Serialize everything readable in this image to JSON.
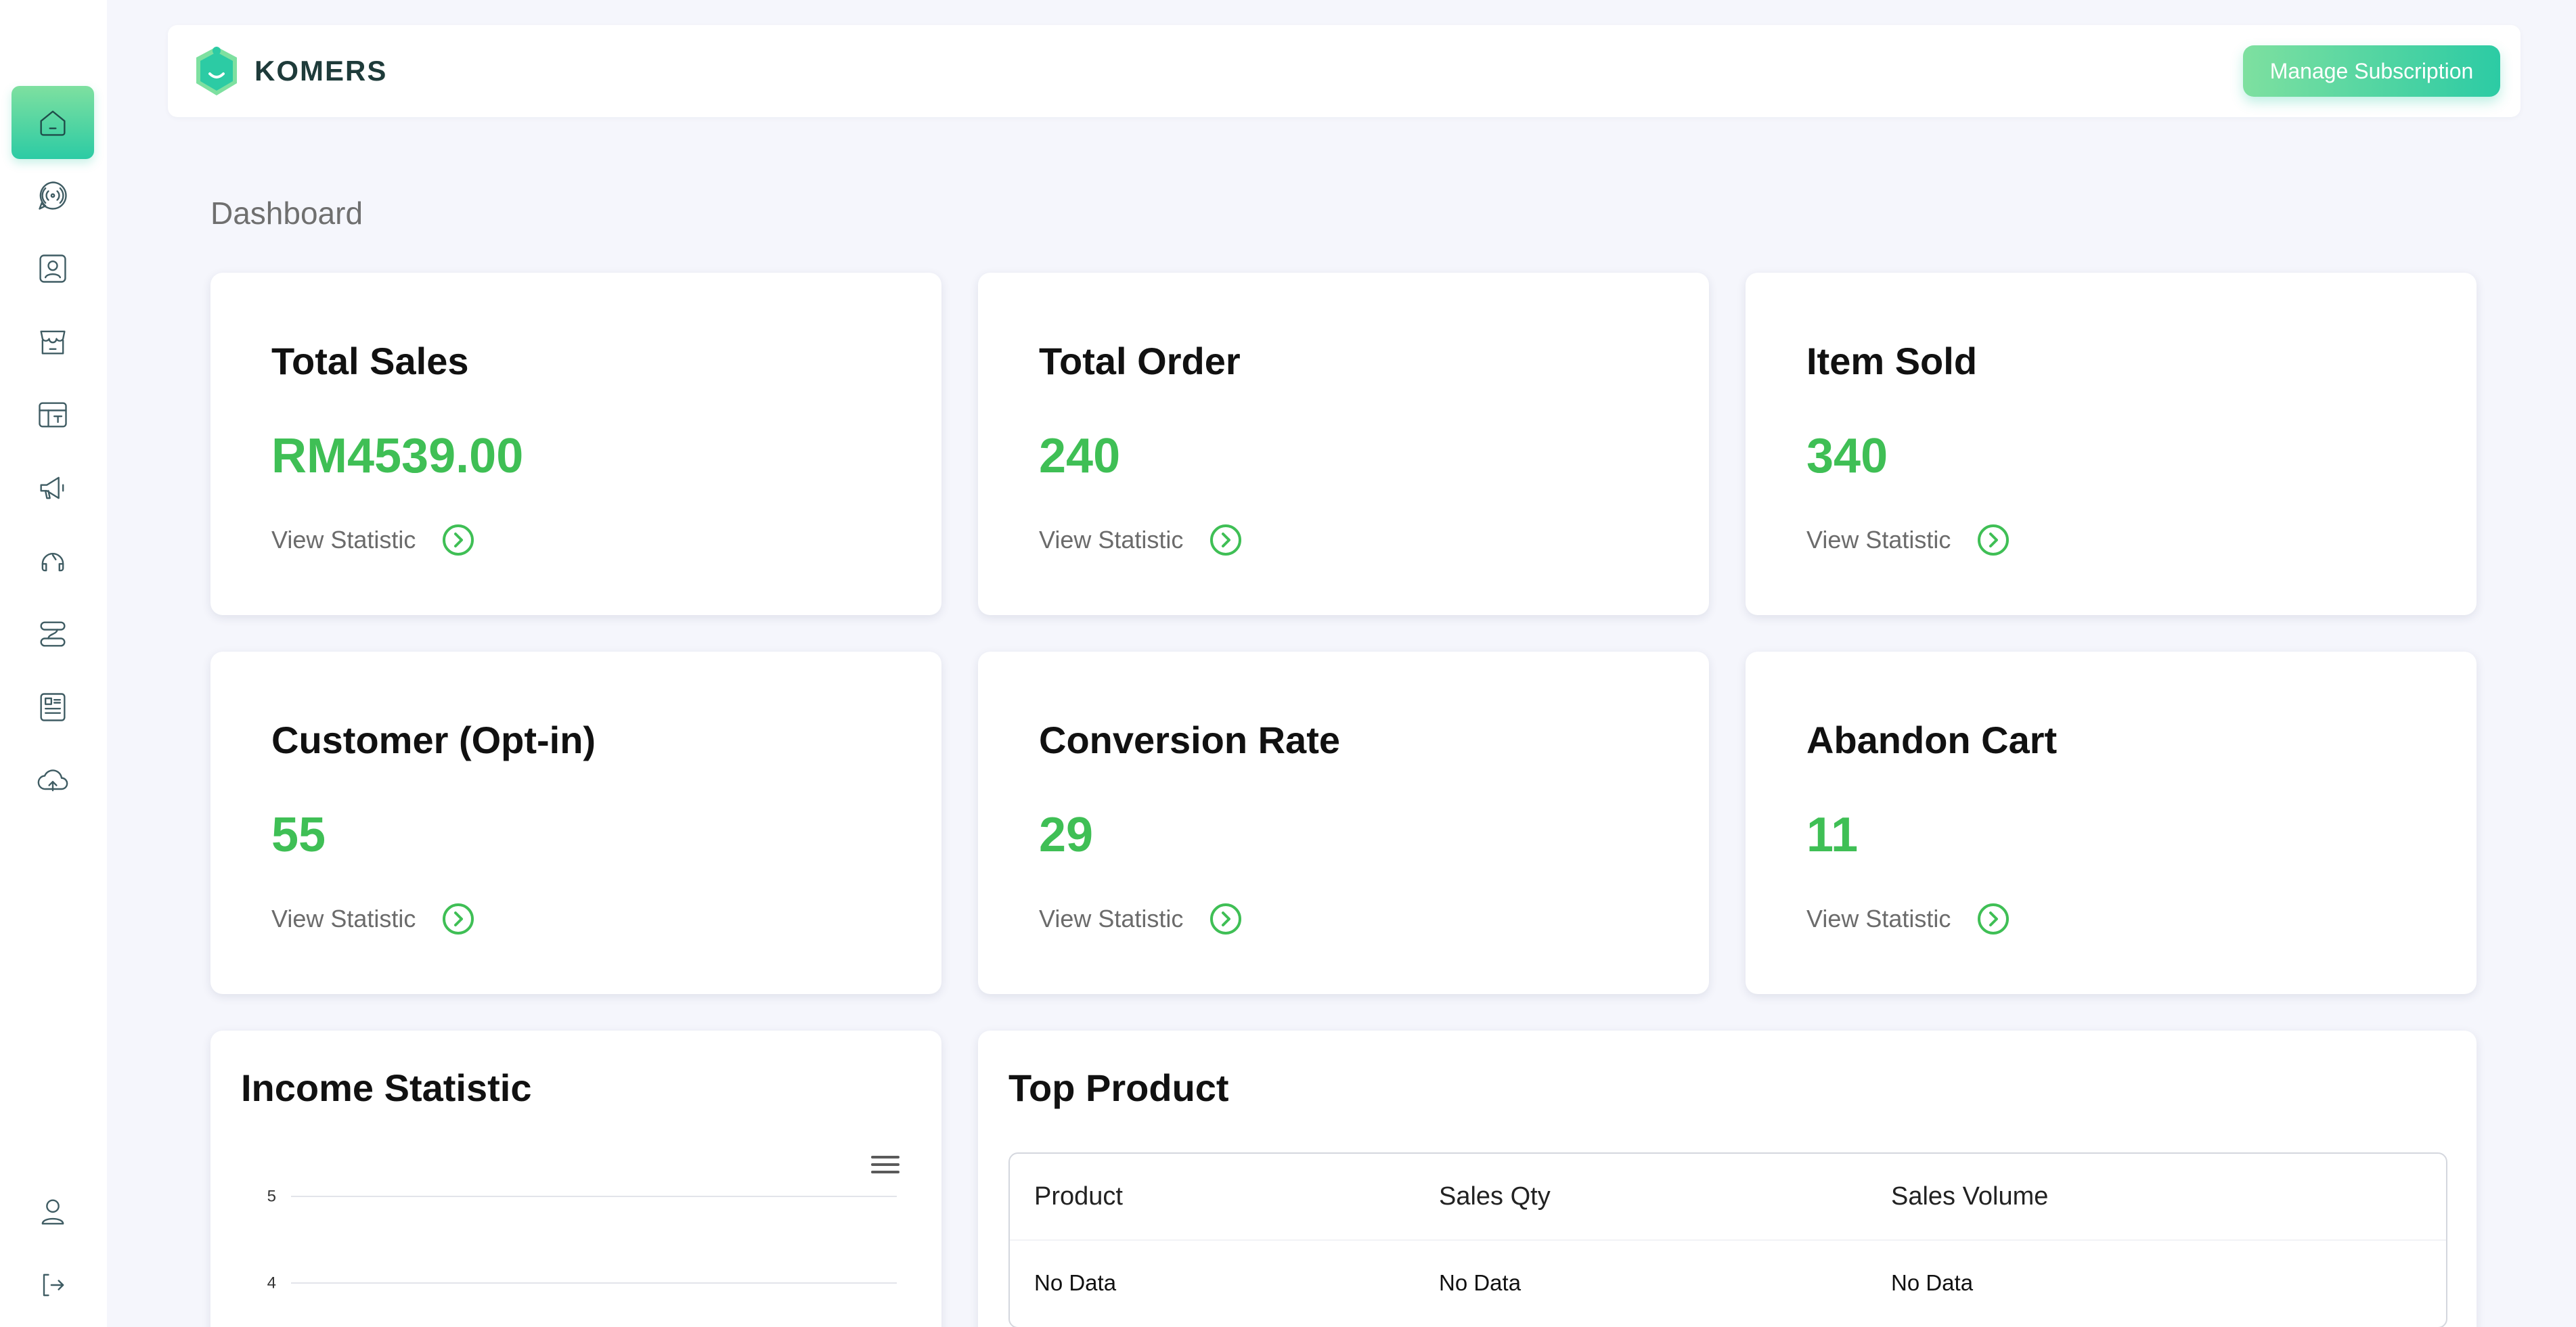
{
  "app": {
    "logo_text": "KOMERS"
  },
  "header": {
    "manage_subscription": "Manage Subscription"
  },
  "sidebar": {
    "items": [
      {
        "icon": "home-icon",
        "active": true
      },
      {
        "icon": "broadcast-chat-icon",
        "active": false
      },
      {
        "icon": "contact-card-icon",
        "active": false
      },
      {
        "icon": "store-icon",
        "active": false
      },
      {
        "icon": "layout-template-icon",
        "active": false
      },
      {
        "icon": "megaphone-icon",
        "active": false
      },
      {
        "icon": "support-headset-icon",
        "active": false
      },
      {
        "icon": "flow-icon",
        "active": false
      },
      {
        "icon": "catalog-icon",
        "active": false
      },
      {
        "icon": "cloud-upload-icon",
        "active": false
      }
    ],
    "bottom": [
      {
        "icon": "user-profile-icon"
      },
      {
        "icon": "logout-icon"
      }
    ]
  },
  "page": {
    "title": "Dashboard"
  },
  "stats": [
    {
      "title": "Total Sales",
      "value": "RM4539.00",
      "link": "View Statistic"
    },
    {
      "title": "Total Order",
      "value": "240",
      "link": "View Statistic"
    },
    {
      "title": "Item Sold",
      "value": "340",
      "link": "View Statistic"
    },
    {
      "title": "Customer (Opt-in)",
      "value": "55",
      "link": "View Statistic"
    },
    {
      "title": "Conversion Rate",
      "value": "29",
      "link": "View Statistic"
    },
    {
      "title": "Abandon Cart",
      "value": "11",
      "link": "View Statistic"
    }
  ],
  "income": {
    "title": "Income Statistic",
    "y_ticks": [
      "5",
      "4"
    ]
  },
  "top_product": {
    "title": "Top Product",
    "columns": [
      "Product",
      "Sales Qty",
      "Sales Volume"
    ],
    "rows": [
      [
        "No Data",
        "No Data",
        "No Data"
      ]
    ]
  },
  "colors": {
    "accent_start": "#7ee0a0",
    "accent_end": "#2ccba4",
    "value_green": "#3fbf55",
    "icon_stroke": "#3f5c63"
  }
}
